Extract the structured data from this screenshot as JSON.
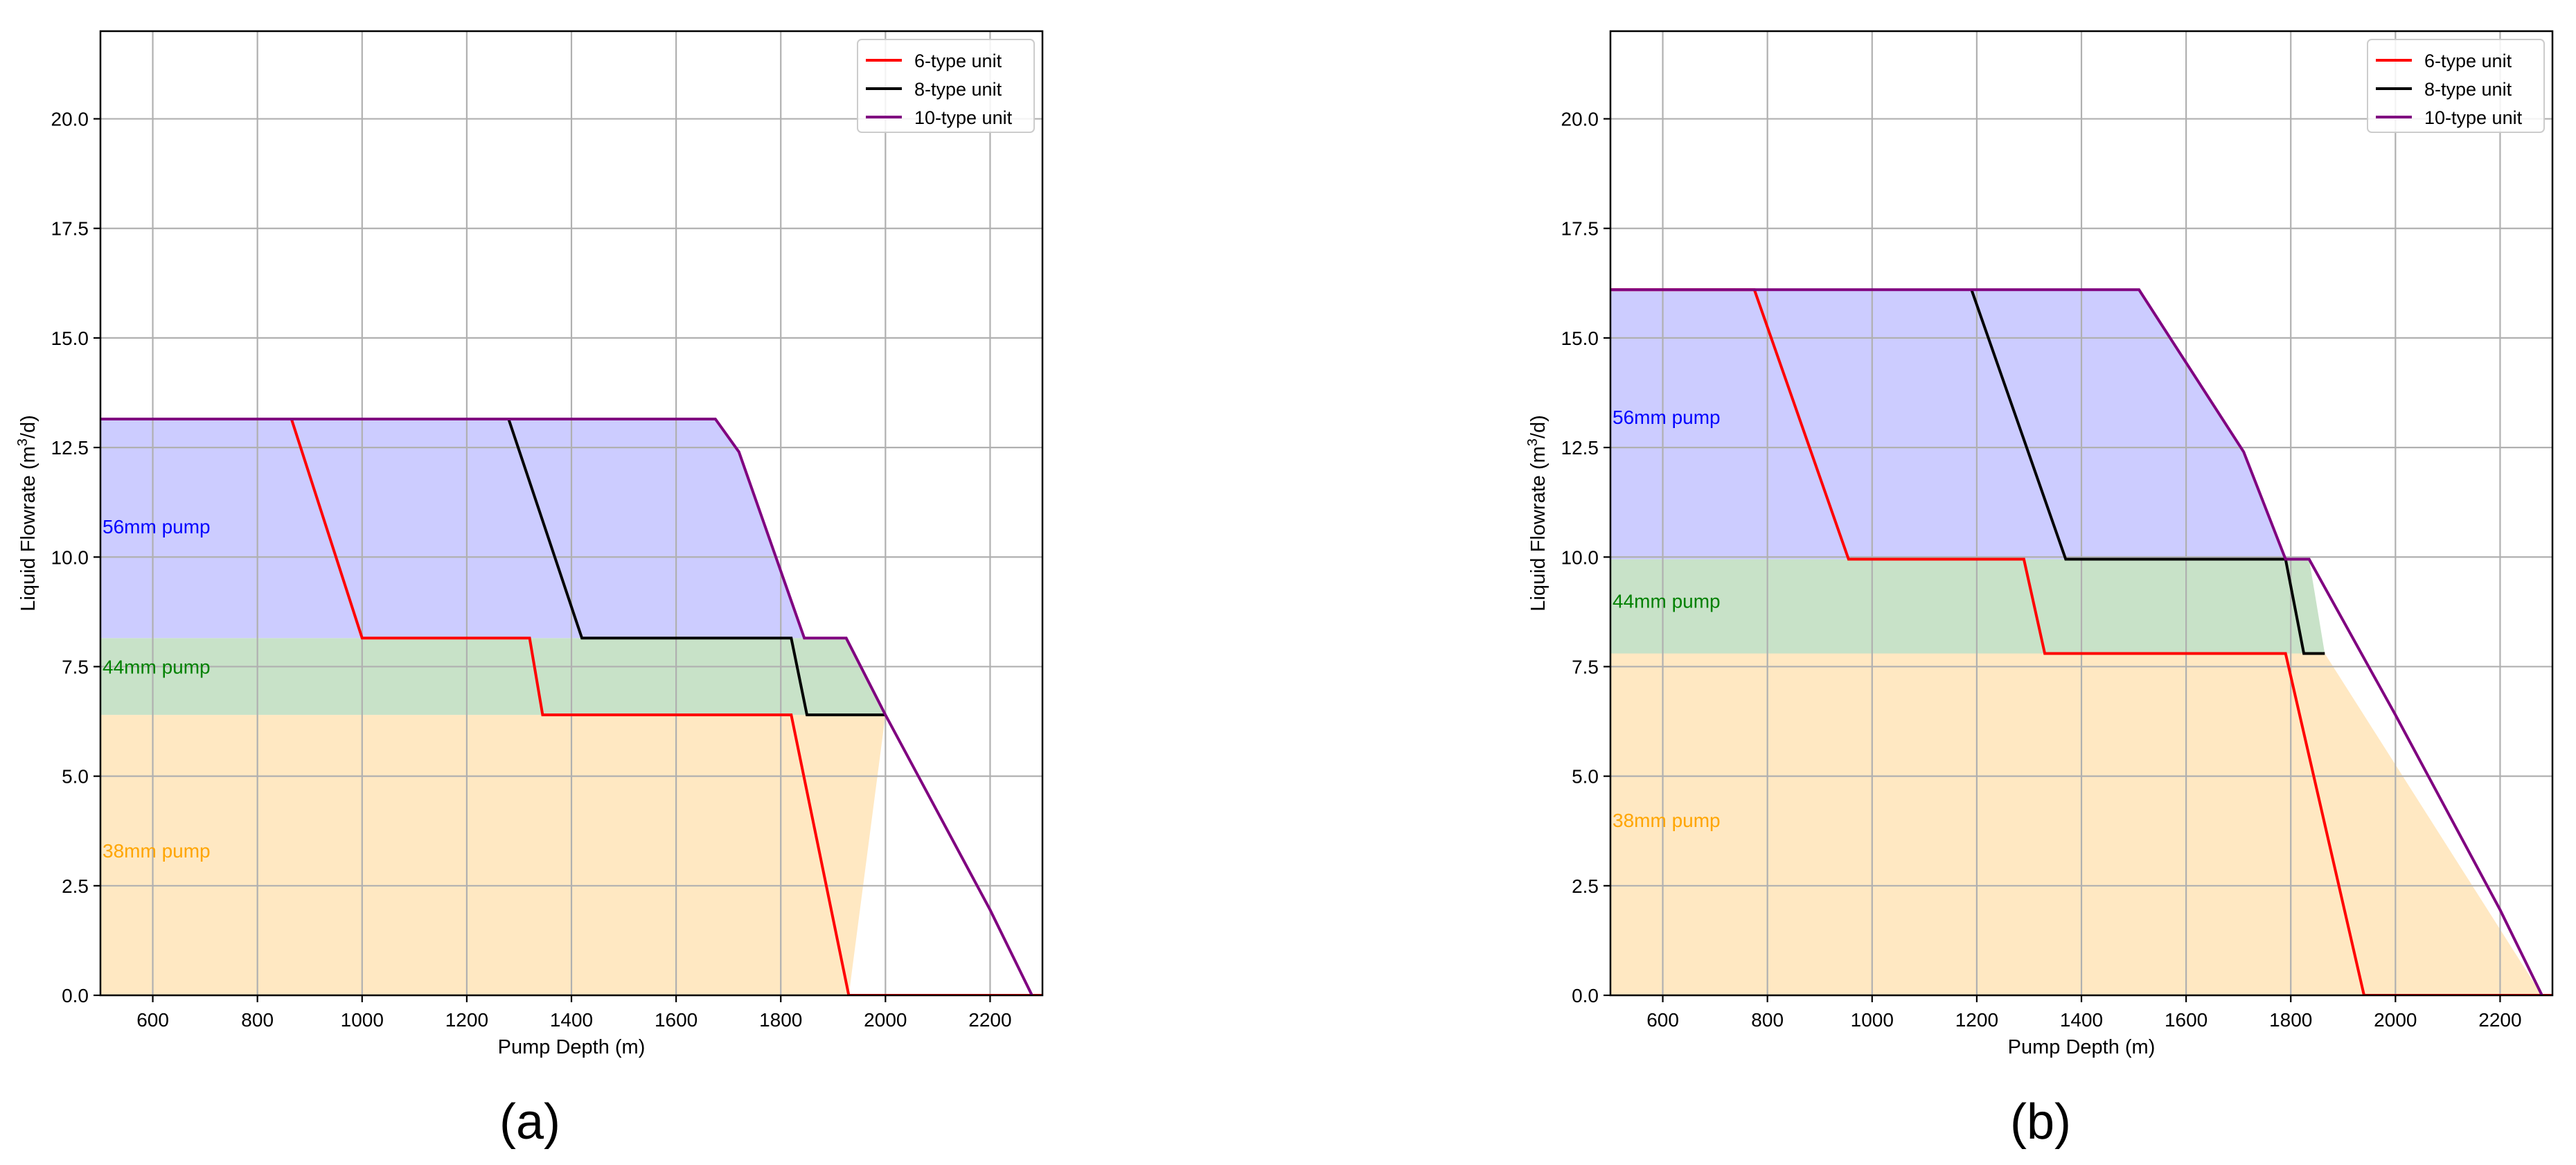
{
  "chart_data": [
    {
      "panel_label": "(a)",
      "type": "line",
      "title": "",
      "xlabel": "Pump Depth (m)",
      "ylabel_prefix": "Liquid Flowrate (m",
      "ylabel_sup": "3",
      "ylabel_suffix": "/d)",
      "xlim": [
        500,
        2300
      ],
      "ylim": [
        0,
        22
      ],
      "xticks": [
        600,
        800,
        1000,
        1200,
        1400,
        1600,
        1800,
        2000,
        2200
      ],
      "yticks": [
        0.0,
        2.5,
        5.0,
        7.5,
        10.0,
        12.5,
        15.0,
        17.5,
        20.0
      ],
      "xtick_labels": [
        "600",
        "800",
        "1000",
        "1200",
        "1400",
        "1600",
        "1800",
        "2000",
        "2200"
      ],
      "ytick_labels": [
        "0.0",
        "2.5",
        "5.0",
        "7.5",
        "10.0",
        "12.5",
        "15.0",
        "17.5",
        "20.0"
      ],
      "grid": true,
      "legend_position": "top-right",
      "regions": [
        {
          "name": "38mm pump",
          "label": "38mm pump",
          "color": "#ffe8c2",
          "label_color": "#ffa500",
          "y_from": 0.0,
          "y_to": 6.4,
          "label_y": 3.3,
          "boundary": [
            [
              1930,
              0
            ],
            [
              2000,
              6.4
            ]
          ]
        },
        {
          "name": "44mm pump",
          "label": "44mm pump",
          "color": "#c8e2c8",
          "label_color": "#008000",
          "y_from": 6.4,
          "y_to": 8.15,
          "label_y": 7.5,
          "boundary": [
            [
              2000,
              6.4
            ],
            [
              1925,
              8.15
            ]
          ]
        },
        {
          "name": "56mm pump",
          "label": "56mm pump",
          "color": "#ccccff",
          "label_color": "#0000ff",
          "y_from": 8.15,
          "y_to": 13.15,
          "label_y": 10.7,
          "boundary": [
            [
              1925,
              8.15
            ],
            [
              1845,
              8.15
            ],
            [
              1720,
              12.4
            ],
            [
              1675,
              13.15
            ]
          ]
        }
      ],
      "series": [
        {
          "name": "6-type unit",
          "color": "#ff0000",
          "x": [
            500,
            865,
            1000,
            1320,
            1345,
            1820,
            1930,
            2300
          ],
          "y": [
            13.15,
            13.15,
            8.15,
            8.15,
            6.4,
            6.4,
            0,
            0
          ]
        },
        {
          "name": "8-type unit",
          "color": "#000000",
          "x": [
            1280,
            1420,
            1820,
            1850,
            2000
          ],
          "y": [
            13.15,
            8.15,
            8.15,
            6.4,
            6.4
          ]
        },
        {
          "name": "10-type unit",
          "color": "#800080",
          "x": [
            500,
            1675,
            1720,
            1845,
            1925,
            2000,
            2200,
            2280
          ],
          "y": [
            13.15,
            13.15,
            12.4,
            8.15,
            8.15,
            6.4,
            1.95,
            0
          ]
        }
      ]
    },
    {
      "panel_label": "(b)",
      "type": "line",
      "title": "",
      "xlabel": "Pump Depth (m)",
      "ylabel_prefix": "Liquid Flowrate (m",
      "ylabel_sup": "3",
      "ylabel_suffix": "/d)",
      "xlim": [
        500,
        2300
      ],
      "ylim": [
        0,
        22
      ],
      "xticks": [
        600,
        800,
        1000,
        1200,
        1400,
        1600,
        1800,
        2000,
        2200
      ],
      "yticks": [
        0.0,
        2.5,
        5.0,
        7.5,
        10.0,
        12.5,
        15.0,
        17.5,
        20.0
      ],
      "xtick_labels": [
        "600",
        "800",
        "1000",
        "1200",
        "1400",
        "1600",
        "1800",
        "2000",
        "2200"
      ],
      "ytick_labels": [
        "0.0",
        "2.5",
        "5.0",
        "7.5",
        "10.0",
        "12.5",
        "15.0",
        "17.5",
        "20.0"
      ],
      "grid": true,
      "legend_position": "top-right",
      "regions": [
        {
          "name": "38mm pump",
          "label": "38mm pump",
          "color": "#ffe8c2",
          "label_color": "#ffa500",
          "y_from": 0.0,
          "y_to": 7.8,
          "label_y": 4.0,
          "boundary": [
            [
              2280,
              0
            ],
            [
              1865,
              7.8
            ]
          ]
        },
        {
          "name": "44mm pump",
          "label": "44mm pump",
          "color": "#c8e2c8",
          "label_color": "#008000",
          "y_from": 7.8,
          "y_to": 9.95,
          "label_y": 9.0,
          "boundary": [
            [
              1865,
              7.8
            ],
            [
              1835,
              9.95
            ]
          ]
        },
        {
          "name": "56mm pump",
          "label": "56mm pump",
          "color": "#ccccff",
          "label_color": "#0000ff",
          "y_from": 9.95,
          "y_to": 16.1,
          "label_y": 13.2,
          "boundary": [
            [
              1835,
              9.95
            ],
            [
              1790,
              9.95
            ],
            [
              1710,
              12.4
            ],
            [
              1510,
              16.1
            ]
          ]
        }
      ],
      "series": [
        {
          "name": "6-type unit",
          "color": "#ff0000",
          "x": [
            500,
            775,
            955,
            1290,
            1330,
            1790,
            1940,
            2300
          ],
          "y": [
            16.1,
            16.1,
            9.95,
            9.95,
            7.8,
            7.8,
            0,
            0
          ]
        },
        {
          "name": "8-type unit",
          "color": "#000000",
          "x": [
            1190,
            1370,
            1790,
            1825,
            1865
          ],
          "y": [
            16.1,
            9.95,
            9.95,
            7.8,
            7.8
          ]
        },
        {
          "name": "10-type unit",
          "color": "#800080",
          "x": [
            500,
            1510,
            1710,
            1790,
            1835,
            2000,
            2200,
            2280
          ],
          "y": [
            16.1,
            16.1,
            12.4,
            9.95,
            9.95,
            6.4,
            1.95,
            0
          ]
        }
      ]
    }
  ]
}
